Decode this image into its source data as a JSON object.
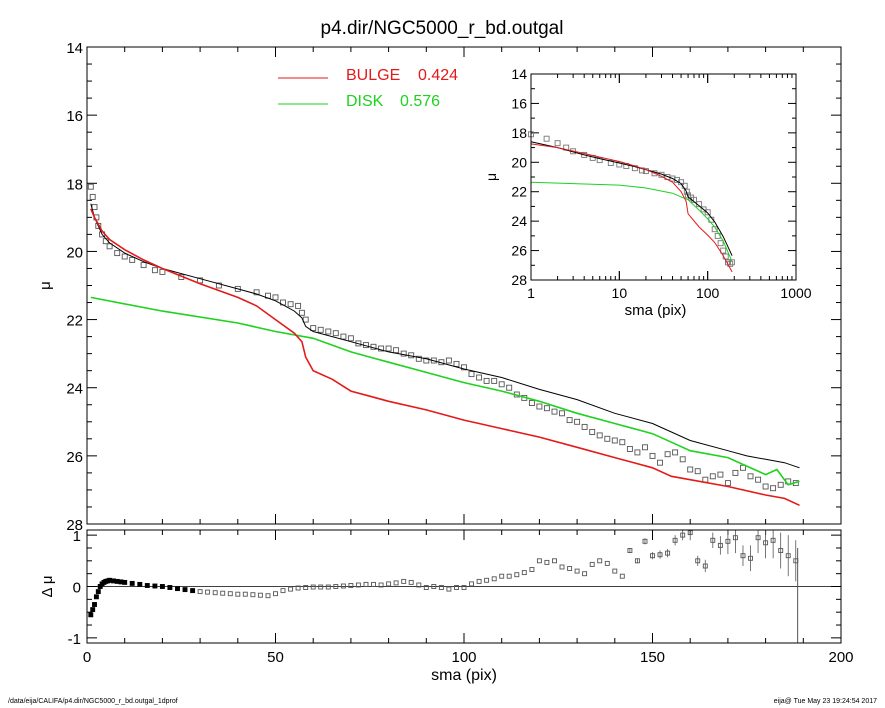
{
  "title": "p4.dir/NGC5000_r_bd.outgal",
  "footer": {
    "left": "/data/eija/CALIFA/p4.dir/NGC5000_r_bd.outgal_1dprof",
    "right": "eija@  Tue May 23 19:24:54 2017"
  },
  "colors": {
    "bulge": "#e41a1a",
    "disk": "#1ed21e",
    "total": "#000000",
    "data": "#555555"
  },
  "chart_data": [
    {
      "id": "main",
      "type": "line",
      "ylabel": "μ",
      "xlim": [
        0,
        200
      ],
      "ylim": [
        28,
        14
      ],
      "y_inverted": true,
      "yticks": [
        14,
        16,
        18,
        20,
        22,
        24,
        26,
        28
      ],
      "legend": [
        {
          "label": "BULGE",
          "value": "0.424",
          "color": "#e41a1a"
        },
        {
          "label": "DISK",
          "value": "0.576",
          "color": "#1ed21e"
        }
      ],
      "series": [
        {
          "name": "BULGE",
          "color": "#e41a1a",
          "x": [
            1,
            2,
            4,
            6,
            10,
            15,
            20,
            30,
            40,
            45,
            50,
            55,
            57,
            58,
            60,
            65,
            70,
            75,
            80,
            90,
            100,
            110,
            120,
            130,
            140,
            150,
            155,
            160,
            170,
            180,
            185,
            189
          ],
          "y": [
            18.75,
            19.0,
            19.4,
            19.65,
            19.95,
            20.25,
            20.5,
            20.95,
            21.35,
            21.6,
            22.0,
            22.4,
            22.65,
            23.1,
            23.5,
            23.75,
            24.1,
            24.25,
            24.4,
            24.65,
            24.95,
            25.2,
            25.45,
            25.75,
            26.05,
            26.35,
            26.6,
            26.7,
            26.9,
            27.15,
            27.25,
            27.45
          ]
        },
        {
          "name": "DISK",
          "color": "#1ed21e",
          "x": [
            1,
            20,
            40,
            50,
            60,
            70,
            80,
            90,
            100,
            110,
            120,
            130,
            140,
            150,
            155,
            160,
            170,
            175,
            180,
            183,
            186,
            189
          ],
          "y": [
            21.35,
            21.75,
            22.1,
            22.35,
            22.55,
            22.95,
            23.25,
            23.55,
            23.85,
            24.1,
            24.4,
            24.75,
            25.05,
            25.35,
            25.6,
            25.85,
            26.05,
            26.3,
            26.55,
            26.4,
            26.85,
            26.75
          ]
        },
        {
          "name": "total",
          "color": "#000000",
          "x": [
            1,
            2,
            4,
            6,
            10,
            15,
            20,
            30,
            40,
            45,
            50,
            55,
            57,
            58,
            60,
            70,
            80,
            90,
            100,
            110,
            120,
            130,
            140,
            150,
            155,
            160,
            170,
            175,
            180,
            185,
            189
          ],
          "y": [
            18.6,
            19.0,
            19.5,
            19.75,
            20.05,
            20.3,
            20.5,
            20.8,
            21.1,
            21.25,
            21.45,
            21.75,
            21.95,
            22.2,
            22.35,
            22.65,
            22.95,
            23.15,
            23.45,
            23.7,
            24.05,
            24.35,
            24.75,
            25.05,
            25.3,
            25.55,
            25.85,
            26.0,
            26.1,
            26.2,
            26.35
          ]
        },
        {
          "name": "data",
          "color": "#555555",
          "marker": "square",
          "x": [
            1,
            1.5,
            2,
            2.5,
            3,
            4,
            5,
            6,
            8,
            10,
            12,
            15,
            18,
            20,
            25,
            30,
            35,
            40,
            45,
            48,
            50,
            52,
            54,
            56,
            57,
            58,
            60,
            62,
            64,
            66,
            68,
            70,
            72,
            74,
            76,
            78,
            80,
            82,
            84,
            86,
            88,
            90,
            92,
            94,
            96,
            98,
            100,
            102,
            104,
            106,
            108,
            110,
            112,
            114,
            116,
            118,
            120,
            122,
            124,
            126,
            128,
            130,
            132,
            134,
            136,
            138,
            140,
            142,
            144,
            146,
            148,
            150,
            152,
            154,
            156,
            158,
            160,
            162,
            164,
            166,
            168,
            170,
            172,
            174,
            176,
            178,
            180,
            182,
            184,
            186,
            188
          ],
          "y": [
            18.1,
            18.4,
            18.7,
            19.0,
            19.25,
            19.5,
            19.7,
            19.85,
            20.05,
            20.15,
            20.25,
            20.4,
            20.55,
            20.6,
            20.75,
            20.85,
            21.0,
            21.1,
            21.2,
            21.3,
            21.35,
            21.5,
            21.55,
            21.6,
            21.8,
            22.0,
            22.25,
            22.3,
            22.35,
            22.4,
            22.5,
            22.55,
            22.7,
            22.75,
            22.8,
            22.85,
            22.85,
            22.9,
            23.0,
            23.05,
            23.15,
            23.2,
            23.2,
            23.25,
            23.2,
            23.3,
            23.4,
            23.6,
            23.7,
            23.8,
            23.8,
            23.9,
            24.0,
            24.2,
            24.3,
            24.45,
            24.55,
            24.6,
            24.7,
            24.75,
            24.95,
            25.0,
            25.15,
            25.3,
            25.4,
            25.5,
            25.55,
            25.6,
            25.8,
            25.9,
            25.75,
            26.0,
            26.2,
            25.95,
            25.9,
            26.1,
            26.4,
            26.45,
            26.7,
            26.6,
            26.55,
            26.8,
            26.5,
            26.35,
            26.6,
            26.7,
            26.9,
            26.95,
            26.85,
            26.75,
            26.8
          ]
        }
      ]
    },
    {
      "id": "inset",
      "type": "line",
      "xlabel": "sma (pix)",
      "ylabel": "μ",
      "x_scale": "log",
      "xlim": [
        1,
        1000
      ],
      "ylim": [
        28,
        14
      ],
      "y_inverted": true,
      "xticks": [
        1,
        10,
        100,
        1000
      ],
      "yticks": [
        14,
        16,
        18,
        20,
        22,
        24,
        26,
        28
      ],
      "series": [
        {
          "name": "BULGE",
          "color": "#e41a1a",
          "x": [
            1,
            2,
            4,
            6,
            10,
            15,
            20,
            30,
            40,
            50,
            57,
            60,
            80,
            100,
            120,
            150,
            189
          ],
          "y": [
            18.75,
            19.0,
            19.4,
            19.65,
            19.95,
            20.25,
            20.5,
            20.95,
            21.35,
            22.0,
            22.65,
            23.5,
            24.4,
            24.95,
            25.45,
            26.35,
            27.45
          ]
        },
        {
          "name": "DISK",
          "color": "#1ed21e",
          "x": [
            1,
            10,
            20,
            40,
            50,
            60,
            80,
            100,
            120,
            150,
            189
          ],
          "y": [
            21.35,
            21.55,
            21.75,
            22.1,
            22.35,
            22.55,
            23.25,
            23.85,
            24.4,
            25.35,
            26.75
          ]
        },
        {
          "name": "total",
          "color": "#000000",
          "x": [
            1,
            2,
            4,
            6,
            10,
            15,
            20,
            30,
            40,
            50,
            57,
            60,
            80,
            100,
            120,
            150,
            189
          ],
          "y": [
            18.6,
            19.0,
            19.5,
            19.75,
            20.05,
            20.3,
            20.5,
            20.8,
            21.1,
            21.45,
            21.95,
            22.35,
            22.95,
            23.45,
            24.05,
            25.05,
            26.35
          ]
        },
        {
          "name": "data",
          "color": "#777777",
          "marker": "square",
          "x": [
            1,
            1.5,
            2,
            2.5,
            3,
            4,
            5,
            6,
            8,
            10,
            12,
            15,
            18,
            20,
            25,
            30,
            35,
            40,
            45,
            50,
            55,
            58,
            60,
            65,
            70,
            80,
            90,
            100,
            110,
            120,
            130,
            140,
            150,
            160,
            170,
            180,
            188
          ],
          "y": [
            18.1,
            18.4,
            18.7,
            19.0,
            19.25,
            19.5,
            19.7,
            19.85,
            20.05,
            20.15,
            20.25,
            20.4,
            20.55,
            20.6,
            20.75,
            20.85,
            21.0,
            21.1,
            21.2,
            21.35,
            21.6,
            22.0,
            22.25,
            22.4,
            22.55,
            22.85,
            23.2,
            23.4,
            23.9,
            24.55,
            25.0,
            25.5,
            26.0,
            26.4,
            26.8,
            26.9,
            26.8
          ]
        }
      ]
    },
    {
      "id": "residual",
      "type": "scatter",
      "xlabel": "sma (pix)",
      "ylabel": "Δ μ",
      "xlim": [
        0,
        200
      ],
      "ylim": [
        -1.1,
        1.1
      ],
      "xticks": [
        0,
        50,
        100,
        150,
        200
      ],
      "yticks": [
        -1,
        0,
        1
      ],
      "zero_line": 0,
      "series": [
        {
          "name": "residual",
          "color": "#000000",
          "marker": "square",
          "x": [
            1,
            1.5,
            2,
            2.5,
            3,
            3.5,
            4,
            4.5,
            5,
            5.5,
            6,
            7,
            8,
            9,
            10,
            12,
            14,
            16,
            18,
            20,
            22,
            24,
            26,
            28,
            30,
            32,
            34,
            36,
            38,
            40,
            42,
            44,
            46,
            48,
            50,
            52,
            54,
            56,
            58,
            60,
            62,
            64,
            66,
            68,
            70,
            72,
            74,
            76,
            78,
            80,
            82,
            84,
            86,
            88,
            90,
            92,
            94,
            96,
            98,
            100,
            102,
            104,
            106,
            108,
            110,
            112,
            114,
            116,
            118,
            120,
            122,
            124,
            126,
            128,
            130,
            132,
            134,
            136,
            138,
            140,
            142,
            144,
            146,
            148,
            150,
            152,
            154,
            156,
            158,
            160,
            162,
            164,
            166,
            168,
            170,
            172,
            174,
            176,
            178,
            180,
            182,
            184,
            186,
            188
          ],
          "y": [
            -0.55,
            -0.45,
            -0.35,
            -0.2,
            -0.1,
            0.0,
            0.05,
            0.08,
            0.1,
            0.11,
            0.12,
            0.11,
            0.1,
            0.09,
            0.08,
            0.06,
            0.04,
            0.02,
            0.01,
            0.0,
            -0.02,
            -0.04,
            -0.06,
            -0.08,
            -0.1,
            -0.11,
            -0.12,
            -0.13,
            -0.14,
            -0.15,
            -0.15,
            -0.16,
            -0.17,
            -0.18,
            -0.14,
            -0.08,
            -0.05,
            -0.03,
            -0.02,
            -0.01,
            -0.01,
            -0.01,
            0.0,
            0.01,
            0.02,
            0.03,
            0.04,
            0.04,
            0.03,
            0.05,
            0.07,
            0.1,
            0.08,
            0.03,
            -0.02,
            0.0,
            -0.02,
            -0.05,
            -0.02,
            -0.02,
            0.05,
            0.1,
            0.12,
            0.15,
            0.2,
            0.2,
            0.23,
            0.27,
            0.33,
            0.5,
            0.47,
            0.5,
            0.38,
            0.35,
            0.3,
            0.25,
            0.43,
            0.5,
            0.45,
            0.3,
            0.2,
            0.7,
            0.5,
            0.88,
            0.6,
            0.62,
            0.65,
            0.9,
            1.0,
            1.05,
            0.5,
            0.4,
            0.9,
            0.8,
            0.88,
            0.95,
            0.6,
            0.55,
            0.95,
            0.85,
            0.9,
            0.7,
            0.6,
            0.5
          ],
          "errors": [
            0.02,
            0.02,
            0.02,
            0.02,
            0.02,
            0.02,
            0.02,
            0.02,
            0.02,
            0.02,
            0.02,
            0.02,
            0.02,
            0.02,
            0.02,
            0.02,
            0.02,
            0.02,
            0.02,
            0.02,
            0.02,
            0.02,
            0.02,
            0.02,
            0.02,
            0.02,
            0.02,
            0.02,
            0.02,
            0.02,
            0.02,
            0.02,
            0.02,
            0.02,
            0.02,
            0.02,
            0.02,
            0.02,
            0.02,
            0.02,
            0.02,
            0.02,
            0.02,
            0.02,
            0.02,
            0.02,
            0.02,
            0.02,
            0.02,
            0.02,
            0.02,
            0.02,
            0.02,
            0.02,
            0.02,
            0.02,
            0.02,
            0.02,
            0.02,
            0.02,
            0.02,
            0.02,
            0.02,
            0.02,
            0.02,
            0.02,
            0.02,
            0.02,
            0.02,
            0.03,
            0.03,
            0.03,
            0.03,
            0.03,
            0.03,
            0.03,
            0.03,
            0.03,
            0.03,
            0.03,
            0.03,
            0.05,
            0.05,
            0.06,
            0.07,
            0.08,
            0.08,
            0.1,
            0.1,
            0.15,
            0.1,
            0.12,
            0.15,
            0.18,
            0.25,
            0.3,
            0.2,
            0.25,
            0.3,
            0.3,
            0.35,
            0.35,
            0.4,
            0.4
          ]
        }
      ]
    }
  ]
}
